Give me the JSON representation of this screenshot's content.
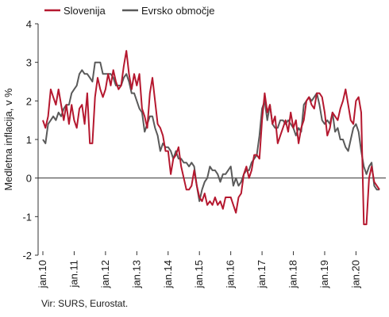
{
  "chart_data": {
    "type": "line",
    "ylabel": "Medletna inflacija, v %",
    "ylim": [
      -2,
      4
    ],
    "yticks": [
      -2,
      -1,
      0,
      1,
      2,
      3,
      4
    ],
    "xticks": [
      "jan.10",
      "jan.11",
      "jan.12",
      "jan.13",
      "jan.14",
      "jan.15",
      "jan.16",
      "jan.17",
      "jan.18",
      "jan.19",
      "jan.20"
    ],
    "x_start": "2010-01",
    "x_end": "2020-10",
    "legend_position": "top-left",
    "grid": false,
    "series": [
      {
        "name": "Slovenija",
        "color": "#b5182f",
        "values": [
          1.5,
          1.3,
          1.6,
          2.3,
          2.1,
          1.9,
          2.3,
          1.9,
          1.5,
          1.9,
          1.4,
          1.9,
          1.5,
          1.3,
          1.8,
          1.9,
          1.4,
          2.2,
          0.9,
          0.9,
          2.1,
          2.6,
          2.3,
          2.1,
          2.3,
          2.7,
          2.4,
          2.8,
          2.5,
          2.3,
          2.4,
          2.9,
          3.3,
          2.7,
          2.3,
          2.7,
          2.4,
          2.7,
          1.8,
          1.6,
          1.3,
          2.2,
          2.6,
          2.0,
          1.4,
          1.3,
          1.1,
          0.7,
          0.7,
          0.1,
          0.5,
          0.6,
          0.8,
          0.3,
          0.0,
          -0.3,
          -0.3,
          -0.2,
          0.2,
          -0.2,
          -0.5,
          -0.6,
          -0.4,
          -0.7,
          -0.6,
          -0.7,
          -0.5,
          -0.7,
          -0.6,
          -0.8,
          -0.5,
          -0.5,
          -0.5,
          -0.7,
          -0.9,
          -0.5,
          -0.4,
          0.1,
          0.3,
          0.0,
          0.2,
          0.6,
          0.6,
          0.5,
          1.5,
          2.2,
          1.7,
          1.9,
          1.4,
          1.6,
          0.9,
          1.1,
          1.3,
          1.5,
          1.2,
          1.7,
          1.3,
          1.5,
          0.9,
          1.3,
          1.5,
          2.0,
          2.1,
          1.9,
          1.8,
          2.2,
          2.2,
          2.1,
          1.7,
          1.1,
          1.3,
          1.7,
          1.6,
          1.5,
          1.8,
          2.0,
          2.3,
          1.9,
          1.5,
          1.4,
          2.0,
          2.1,
          1.7,
          -1.2,
          -1.2,
          0.0,
          0.3,
          -0.1,
          -0.2,
          -0.3
        ]
      },
      {
        "name": "Evrsko območje",
        "color": "#5a5a5a",
        "values": [
          1.0,
          0.9,
          1.4,
          1.5,
          1.6,
          1.5,
          1.7,
          1.6,
          1.8,
          1.9,
          1.9,
          2.2,
          2.3,
          2.4,
          2.7,
          2.8,
          2.7,
          2.7,
          2.6,
          2.5,
          3.0,
          3.0,
          3.0,
          2.7,
          2.7,
          2.7,
          2.7,
          2.6,
          2.4,
          2.4,
          2.4,
          2.6,
          2.7,
          2.5,
          2.2,
          2.2,
          2.0,
          1.8,
          1.7,
          1.2,
          1.4,
          1.6,
          1.6,
          1.3,
          1.1,
          0.7,
          0.9,
          0.8,
          0.8,
          0.7,
          0.5,
          0.7,
          0.5,
          0.5,
          0.4,
          0.4,
          0.3,
          0.4,
          0.3,
          -0.2,
          -0.6,
          -0.3,
          -0.1,
          0.0,
          0.3,
          0.2,
          0.2,
          0.1,
          -0.1,
          0.1,
          0.1,
          0.2,
          0.3,
          -0.2,
          0.0,
          -0.2,
          -0.1,
          0.1,
          0.2,
          0.2,
          0.4,
          0.5,
          0.6,
          1.1,
          1.8,
          2.0,
          1.5,
          1.9,
          1.4,
          1.3,
          1.3,
          1.5,
          1.5,
          1.4,
          1.5,
          1.4,
          1.3,
          1.1,
          1.3,
          1.2,
          1.9,
          2.0,
          2.1,
          2.0,
          2.1,
          2.2,
          1.9,
          1.5,
          1.4,
          1.5,
          1.4,
          1.7,
          1.2,
          1.3,
          1.0,
          1.0,
          0.8,
          0.7,
          1.0,
          1.3,
          1.4,
          1.2,
          0.7,
          0.3,
          0.1,
          0.3,
          0.4,
          -0.2,
          -0.3,
          -0.3
        ]
      }
    ]
  },
  "source": "Vir: SURS, Eurostat."
}
